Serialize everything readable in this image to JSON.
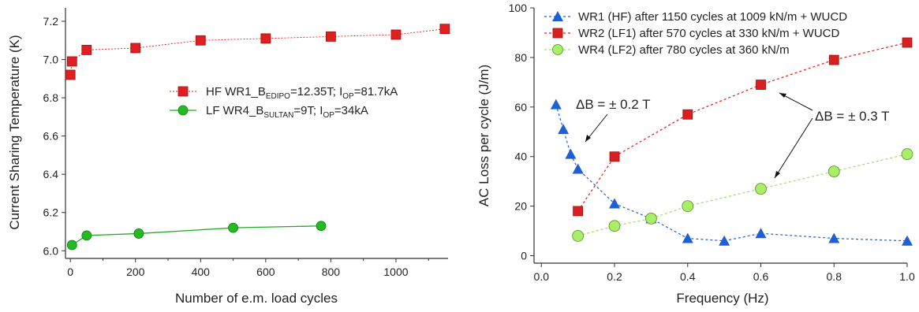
{
  "chart_data": [
    {
      "type": "line",
      "xlabel": "Number of e.m. load cycles",
      "ylabel": "Current Sharing Temperature (K)",
      "xlim": [
        -15,
        1160
      ],
      "ylim": [
        5.96,
        7.27
      ],
      "xticks": [
        0,
        200,
        400,
        600,
        800,
        1000
      ],
      "yticks": [
        6.0,
        6.2,
        6.4,
        6.6,
        6.8,
        7.0,
        7.2
      ],
      "grid": false,
      "legend_position": "center-right",
      "series": [
        {
          "name": "HF WR1_B_EDIPO=12.35T; I_OP=81.7kA",
          "legend": {
            "pre": "HF WR1_B",
            "sub1": "EDIPO",
            "mid": "=12.35T; I",
            "sub2": "OP",
            "post": "=81.7kA"
          },
          "color": "#e02020",
          "marker": "square",
          "x": [
            0,
            5,
            50,
            200,
            400,
            600,
            800,
            1000,
            1150
          ],
          "y": [
            6.92,
            6.99,
            7.05,
            7.06,
            7.1,
            7.11,
            7.12,
            7.13,
            7.16
          ]
        },
        {
          "name": "LF WR4_B_SULTAN=9T; I_OP=34kA",
          "legend": {
            "pre": "LF WR4_B",
            "sub1": "SULTAN",
            "mid": "=9T; I",
            "sub2": "OP",
            "post": "=34kA"
          },
          "color": "#22aa22",
          "marker": "circle",
          "x": [
            5,
            50,
            210,
            500,
            770
          ],
          "y": [
            6.03,
            6.08,
            6.09,
            6.12,
            6.13
          ]
        }
      ]
    },
    {
      "type": "line",
      "xlabel": "Frequency (Hz)",
      "ylabel": "AC Loss per cycle (J/m)",
      "xlim": [
        -0.02,
        1.0
      ],
      "ylim": [
        -3,
        100
      ],
      "xticks": [
        0.0,
        0.2,
        0.4,
        0.6,
        0.8,
        1.0
      ],
      "xtick_labels": [
        "0.0",
        "0.2",
        "0.4",
        "0.6",
        "0.8",
        "1.0"
      ],
      "yticks": [
        0,
        20,
        40,
        60,
        80,
        100
      ],
      "grid": false,
      "legend_position": "top",
      "series": [
        {
          "name": "WR1 (HF) after 1150 cycles at 1009 kN/m + WUCD",
          "color": "#1f5fd6",
          "marker": "triangle",
          "x": [
            0.04,
            0.06,
            0.08,
            0.1,
            0.2,
            0.3,
            0.4,
            0.5,
            0.6,
            0.8,
            1.0
          ],
          "y": [
            61,
            51,
            41,
            35,
            21,
            15,
            7,
            6,
            9,
            7,
            6
          ]
        },
        {
          "name": "WR2 (LF1) after 570 cycles at 330 kN/m + WUCD",
          "color": "#d82020",
          "marker": "square",
          "x": [
            0.1,
            0.2,
            0.4,
            0.6,
            0.8,
            1.0
          ],
          "y": [
            18,
            40,
            57,
            69,
            79,
            86
          ]
        },
        {
          "name": "WR4 (LF2) after 780 cycles at 360 kN/m",
          "color": "#9be060",
          "marker": "circle",
          "x": [
            0.1,
            0.2,
            0.3,
            0.4,
            0.6,
            0.8,
            1.0
          ],
          "y": [
            8,
            12,
            15,
            20,
            27,
            34,
            41
          ]
        }
      ],
      "annotations": [
        {
          "text": "ΔB = ± 0.2 T",
          "points_to": {
            "x": 0.12,
            "y": 45
          }
        },
        {
          "text": "ΔB = ± 0.3 T",
          "points_to": [
            {
              "x": 0.65,
              "y": 68
            },
            {
              "x": 0.65,
              "y": 31
            }
          ]
        }
      ]
    }
  ]
}
